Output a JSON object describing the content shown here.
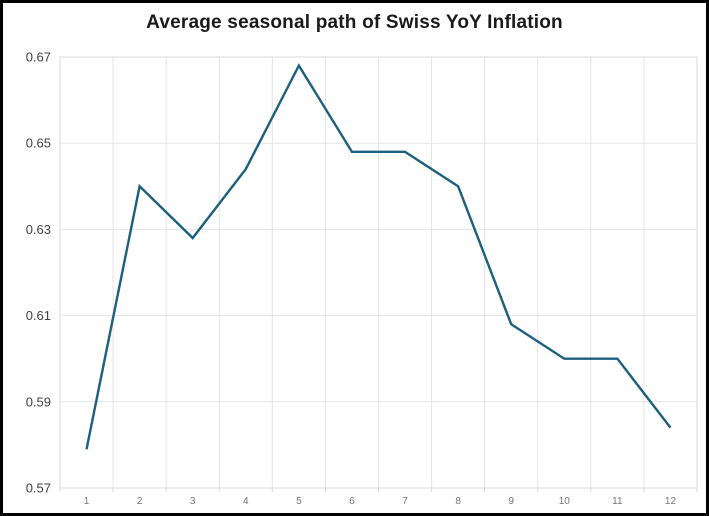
{
  "chart_data": {
    "type": "line",
    "title": "Average seasonal path of Swiss YoY Inflation",
    "xlabel": "",
    "ylabel": "",
    "x": [
      1,
      2,
      3,
      4,
      5,
      6,
      7,
      8,
      9,
      10,
      11,
      12
    ],
    "xticklabels": [
      "1",
      "2",
      "3",
      "4",
      "5",
      "6",
      "7",
      "8",
      "9",
      "10",
      "11",
      "12"
    ],
    "values": [
      0.579,
      0.64,
      0.628,
      0.644,
      0.668,
      0.648,
      0.648,
      0.64,
      0.608,
      0.6,
      0.6,
      0.584
    ],
    "ylim": [
      0.57,
      0.67
    ],
    "yticks": [
      0.57,
      0.59,
      0.61,
      0.63,
      0.65,
      0.67
    ],
    "yticklabels": [
      "0.57",
      "0.59",
      "0.61",
      "0.63",
      "0.65",
      "0.67"
    ],
    "grid": true,
    "legend_position": "none",
    "colors": {
      "line": "#1c5f7e",
      "grid": "#e4e4e4",
      "plot_border": "#d8d8d8",
      "y_tick_text": "#404040",
      "x_tick_text": "#757575",
      "title_text": "#1a1a1a",
      "frame": "#000000",
      "background": "#ffffff"
    }
  }
}
